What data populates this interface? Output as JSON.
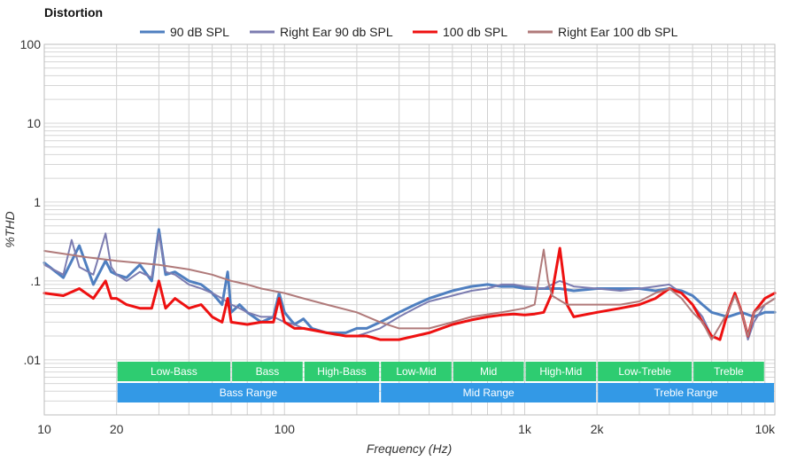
{
  "chart_data": {
    "type": "line",
    "title": "Distortion",
    "xlabel": "Frequency (Hz)",
    "ylabel": "%THD",
    "xscale": "log",
    "yscale": "log",
    "xlim": [
      10,
      11000
    ],
    "ylim": [
      0.002,
      100
    ],
    "x_ticks": [
      {
        "value": 10,
        "label": "10"
      },
      {
        "value": 20,
        "label": "20"
      },
      {
        "value": 100,
        "label": "100"
      },
      {
        "value": 1000,
        "label": "1k"
      },
      {
        "value": 2000,
        "label": "2k"
      },
      {
        "value": 10000,
        "label": "10k"
      }
    ],
    "y_ticks": [
      {
        "value": 100,
        "label": "100"
      },
      {
        "value": 10,
        "label": "10"
      },
      {
        "value": 1,
        "label": "1"
      },
      {
        "value": 0.1,
        "label": ".1"
      },
      {
        "value": 0.01,
        "label": ".01"
      }
    ],
    "grid": true,
    "legend_position": "top",
    "series": [
      {
        "name": "90 dB SPL",
        "color": "#4f7fc0",
        "width": 3,
        "points": [
          [
            10,
            0.17
          ],
          [
            12,
            0.11
          ],
          [
            14,
            0.28
          ],
          [
            16,
            0.09
          ],
          [
            18,
            0.18
          ],
          [
            19,
            0.13
          ],
          [
            20,
            0.12
          ],
          [
            22,
            0.11
          ],
          [
            25,
            0.16
          ],
          [
            28,
            0.1
          ],
          [
            30,
            0.45
          ],
          [
            32,
            0.12
          ],
          [
            35,
            0.13
          ],
          [
            40,
            0.1
          ],
          [
            45,
            0.09
          ],
          [
            50,
            0.07
          ],
          [
            55,
            0.05
          ],
          [
            58,
            0.13
          ],
          [
            60,
            0.04
          ],
          [
            65,
            0.05
          ],
          [
            70,
            0.04
          ],
          [
            80,
            0.03
          ],
          [
            90,
            0.035
          ],
          [
            95,
            0.07
          ],
          [
            100,
            0.04
          ],
          [
            110,
            0.028
          ],
          [
            120,
            0.033
          ],
          [
            130,
            0.025
          ],
          [
            150,
            0.022
          ],
          [
            180,
            0.022
          ],
          [
            200,
            0.025
          ],
          [
            220,
            0.025
          ],
          [
            250,
            0.03
          ],
          [
            300,
            0.04
          ],
          [
            350,
            0.05
          ],
          [
            400,
            0.06
          ],
          [
            500,
            0.075
          ],
          [
            600,
            0.085
          ],
          [
            700,
            0.09
          ],
          [
            800,
            0.085
          ],
          [
            900,
            0.085
          ],
          [
            1000,
            0.08
          ],
          [
            1200,
            0.08
          ],
          [
            1400,
            0.08
          ],
          [
            1600,
            0.075
          ],
          [
            2000,
            0.08
          ],
          [
            2500,
            0.08
          ],
          [
            3000,
            0.08
          ],
          [
            3500,
            0.075
          ],
          [
            4000,
            0.08
          ],
          [
            4500,
            0.075
          ],
          [
            5000,
            0.065
          ],
          [
            5500,
            0.05
          ],
          [
            6000,
            0.04
          ],
          [
            7000,
            0.035
          ],
          [
            8000,
            0.04
          ],
          [
            9000,
            0.035
          ],
          [
            10000,
            0.04
          ],
          [
            11000,
            0.04
          ]
        ]
      },
      {
        "name": "Right Ear 90 db SPL",
        "color": "#7c7cb0",
        "width": 2,
        "points": [
          [
            10,
            0.16
          ],
          [
            12,
            0.12
          ],
          [
            13,
            0.33
          ],
          [
            14,
            0.15
          ],
          [
            16,
            0.12
          ],
          [
            18,
            0.4
          ],
          [
            19,
            0.15
          ],
          [
            20,
            0.12
          ],
          [
            22,
            0.1
          ],
          [
            25,
            0.13
          ],
          [
            28,
            0.11
          ],
          [
            30,
            0.4
          ],
          [
            32,
            0.13
          ],
          [
            35,
            0.12
          ],
          [
            40,
            0.09
          ],
          [
            45,
            0.08
          ],
          [
            50,
            0.07
          ],
          [
            55,
            0.06
          ],
          [
            60,
            0.05
          ],
          [
            65,
            0.045
          ],
          [
            70,
            0.04
          ],
          [
            80,
            0.035
          ],
          [
            90,
            0.035
          ],
          [
            100,
            0.03
          ],
          [
            110,
            0.028
          ],
          [
            120,
            0.025
          ],
          [
            150,
            0.022
          ],
          [
            180,
            0.02
          ],
          [
            200,
            0.02
          ],
          [
            220,
            0.022
          ],
          [
            250,
            0.025
          ],
          [
            300,
            0.035
          ],
          [
            350,
            0.045
          ],
          [
            400,
            0.055
          ],
          [
            500,
            0.065
          ],
          [
            600,
            0.075
          ],
          [
            700,
            0.08
          ],
          [
            800,
            0.09
          ],
          [
            900,
            0.09
          ],
          [
            1000,
            0.085
          ],
          [
            1200,
            0.08
          ],
          [
            1300,
            0.09
          ],
          [
            1400,
            0.1
          ],
          [
            1600,
            0.085
          ],
          [
            2000,
            0.08
          ],
          [
            2500,
            0.075
          ],
          [
            3000,
            0.08
          ],
          [
            3500,
            0.085
          ],
          [
            4000,
            0.09
          ],
          [
            4500,
            0.07
          ],
          [
            5000,
            0.05
          ],
          [
            5500,
            0.035
          ],
          [
            6000,
            0.02
          ],
          [
            6500,
            0.018
          ],
          [
            7000,
            0.04
          ],
          [
            7500,
            0.07
          ],
          [
            8000,
            0.04
          ],
          [
            8500,
            0.018
          ],
          [
            9000,
            0.03
          ],
          [
            10000,
            0.05
          ],
          [
            11000,
            0.06
          ]
        ]
      },
      {
        "name": "100 db SPL",
        "color": "#ee1111",
        "width": 3,
        "points": [
          [
            10,
            0.07
          ],
          [
            12,
            0.065
          ],
          [
            14,
            0.08
          ],
          [
            16,
            0.06
          ],
          [
            18,
            0.1
          ],
          [
            19,
            0.06
          ],
          [
            20,
            0.06
          ],
          [
            22,
            0.05
          ],
          [
            25,
            0.045
          ],
          [
            28,
            0.045
          ],
          [
            30,
            0.1
          ],
          [
            32,
            0.045
          ],
          [
            35,
            0.06
          ],
          [
            40,
            0.045
          ],
          [
            45,
            0.05
          ],
          [
            50,
            0.035
          ],
          [
            55,
            0.03
          ],
          [
            58,
            0.06
          ],
          [
            60,
            0.03
          ],
          [
            70,
            0.028
          ],
          [
            80,
            0.03
          ],
          [
            90,
            0.03
          ],
          [
            95,
            0.06
          ],
          [
            100,
            0.03
          ],
          [
            110,
            0.025
          ],
          [
            120,
            0.025
          ],
          [
            150,
            0.022
          ],
          [
            180,
            0.02
          ],
          [
            200,
            0.02
          ],
          [
            220,
            0.02
          ],
          [
            250,
            0.018
          ],
          [
            300,
            0.018
          ],
          [
            350,
            0.02
          ],
          [
            400,
            0.022
          ],
          [
            500,
            0.028
          ],
          [
            600,
            0.032
          ],
          [
            700,
            0.035
          ],
          [
            800,
            0.037
          ],
          [
            900,
            0.038
          ],
          [
            1000,
            0.037
          ],
          [
            1100,
            0.038
          ],
          [
            1200,
            0.04
          ],
          [
            1300,
            0.07
          ],
          [
            1400,
            0.26
          ],
          [
            1500,
            0.05
          ],
          [
            1600,
            0.035
          ],
          [
            2000,
            0.04
          ],
          [
            2500,
            0.045
          ],
          [
            3000,
            0.05
          ],
          [
            3500,
            0.06
          ],
          [
            4000,
            0.08
          ],
          [
            4500,
            0.07
          ],
          [
            5000,
            0.05
          ],
          [
            5500,
            0.03
          ],
          [
            6000,
            0.02
          ],
          [
            6500,
            0.018
          ],
          [
            7000,
            0.04
          ],
          [
            7500,
            0.07
          ],
          [
            8000,
            0.04
          ],
          [
            8500,
            0.02
          ],
          [
            9000,
            0.04
          ],
          [
            10000,
            0.06
          ],
          [
            11000,
            0.07
          ]
        ]
      },
      {
        "name": "Right Ear 100 db SPL",
        "color": "#b07a7a",
        "width": 2,
        "points": [
          [
            10,
            0.24
          ],
          [
            15,
            0.2
          ],
          [
            20,
            0.18
          ],
          [
            30,
            0.16
          ],
          [
            40,
            0.14
          ],
          [
            50,
            0.12
          ],
          [
            60,
            0.1
          ],
          [
            70,
            0.09
          ],
          [
            80,
            0.08
          ],
          [
            100,
            0.07
          ],
          [
            120,
            0.06
          ],
          [
            150,
            0.05
          ],
          [
            200,
            0.04
          ],
          [
            250,
            0.03
          ],
          [
            300,
            0.025
          ],
          [
            400,
            0.025
          ],
          [
            500,
            0.03
          ],
          [
            600,
            0.035
          ],
          [
            800,
            0.04
          ],
          [
            1000,
            0.045
          ],
          [
            1100,
            0.05
          ],
          [
            1200,
            0.25
          ],
          [
            1250,
            0.1
          ],
          [
            1300,
            0.065
          ],
          [
            1500,
            0.05
          ],
          [
            2000,
            0.05
          ],
          [
            2500,
            0.05
          ],
          [
            3000,
            0.055
          ],
          [
            3500,
            0.07
          ],
          [
            4000,
            0.08
          ],
          [
            4500,
            0.06
          ],
          [
            5000,
            0.04
          ],
          [
            5500,
            0.03
          ],
          [
            6000,
            0.018
          ],
          [
            7000,
            0.04
          ],
          [
            7500,
            0.065
          ],
          [
            8000,
            0.04
          ],
          [
            8500,
            0.02
          ],
          [
            9000,
            0.04
          ],
          [
            10000,
            0.05
          ],
          [
            11000,
            0.06
          ]
        ]
      }
    ],
    "bands": [
      {
        "label": "Low-Bass",
        "from": 20,
        "to": 60,
        "row": 0,
        "color": "#2ecc71"
      },
      {
        "label": "Bass",
        "from": 60,
        "to": 120,
        "row": 0,
        "color": "#2ecc71"
      },
      {
        "label": "High-Bass",
        "from": 120,
        "to": 250,
        "row": 0,
        "color": "#2ecc71"
      },
      {
        "label": "Low-Mid",
        "from": 250,
        "to": 500,
        "row": 0,
        "color": "#2ecc71"
      },
      {
        "label": "Mid",
        "from": 500,
        "to": 1000,
        "row": 0,
        "color": "#2ecc71"
      },
      {
        "label": "High-Mid",
        "from": 1000,
        "to": 2000,
        "row": 0,
        "color": "#2ecc71"
      },
      {
        "label": "Low-Treble",
        "from": 2000,
        "to": 5000,
        "row": 0,
        "color": "#2ecc71"
      },
      {
        "label": "Treble",
        "from": 5000,
        "to": 10000,
        "row": 0,
        "color": "#2ecc71"
      },
      {
        "label": "Bass Range",
        "from": 20,
        "to": 250,
        "row": 1,
        "color": "#3399e6"
      },
      {
        "label": "Mid Range",
        "from": 250,
        "to": 2000,
        "row": 1,
        "color": "#3399e6"
      },
      {
        "label": "Treble Range",
        "from": 2000,
        "to": 11000,
        "row": 1,
        "color": "#3399e6"
      }
    ]
  }
}
